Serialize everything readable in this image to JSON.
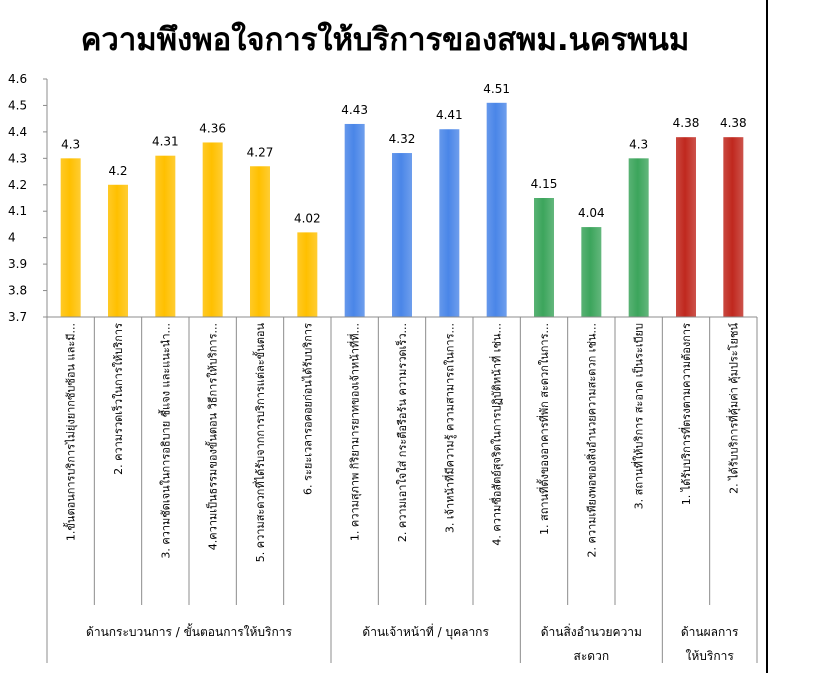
{
  "chart_data": {
    "type": "bar",
    "title": "ความพึงพอใจการให้บริการของสพม.นครพนม",
    "ylim": [
      3.7,
      4.6
    ],
    "yticks": [
      "3.7",
      "3.8",
      "3.9",
      "4",
      "4.1",
      "4.2",
      "4.3",
      "4.4",
      "4.5",
      "4.6"
    ],
    "grid": false,
    "legend": "none",
    "categories": [
      "1.ขั้นตอนการบริการไม่ยุ่งยากซับซ้อน และมี...",
      "2. ความรวดเร็วในการให้บริการ",
      "3. ความชัดเจนในการอธิบาย ชี้แจง และแนะนำ...",
      "4.ความเป็นธรรมของขั้นตอน วิธีการให้บริการ...",
      "5. ความสะดวกที่ได้รับจากการบริการแต่ละขั้นตอน",
      "6. ระยะเวลารอคอยก่อนได้รับบริการ",
      "1. ความสุภาพ กิริยามารยาทของเจ้าหน้าที่ที่...",
      "2. ความเอาใจใส่ กระตือรือร้น ความรวดเร็ว...",
      "3. เจ้าหน้าที่มีความรู้ ความสามารถในการ...",
      "4. ความซื่อสัตย์สุจริตในการปฏิบัติหน้าที่ เช่น...",
      "1. สถานที่ตั้งของอาคารที่พัก สะดวกในการ...",
      "2. ความเพียงพอของสิ่งอำนวยความสะดวก เช่น...",
      "3. สถานที่ให้บริการ สะอาด เป็นระเบียบ",
      "1. ได้รับบริการที่ตรงตามความต้องการ",
      "2. ได้รับบริการที่คุ้มค่า คุ้มประโยชน์"
    ],
    "values": [
      4.3,
      4.2,
      4.31,
      4.36,
      4.27,
      4.02,
      4.43,
      4.32,
      4.41,
      4.51,
      4.15,
      4.04,
      4.3,
      4.38,
      4.38
    ],
    "value_labels": [
      "4.3",
      "4.2",
      "4.31",
      "4.36",
      "4.27",
      "4.02",
      "4.43",
      "4.32",
      "4.41",
      "4.51",
      "4.15",
      "4.04",
      "4.3",
      "4.38",
      "4.38"
    ],
    "groups": [
      {
        "label_lines": [
          "ด้านกระบวนการ / ขั้นตอนการให้บริการ"
        ],
        "count": 6,
        "color": "#FFC000"
      },
      {
        "label_lines": [
          "ด้านเจ้าหน้าที่ / บุคลากร"
        ],
        "count": 4,
        "color": "#4A86E8"
      },
      {
        "label_lines": [
          "ด้านสิ่งอำนวยความ",
          "สะดวก"
        ],
        "count": 3,
        "color": "#3CA55C"
      },
      {
        "label_lines": [
          "ด้านผลการ",
          "ให้บริการ"
        ],
        "count": 2,
        "color": "#C0281E"
      }
    ]
  }
}
